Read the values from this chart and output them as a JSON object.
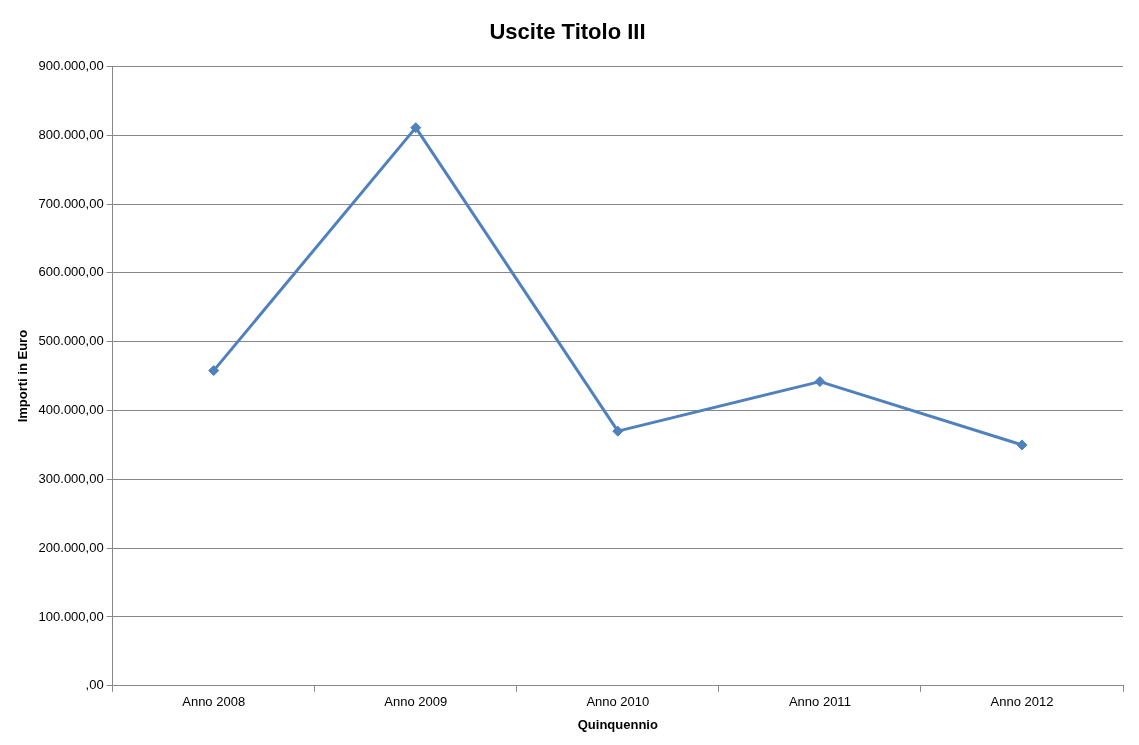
{
  "chart_data": {
    "type": "line",
    "title": "Uscite Titolo III",
    "xlabel": "Quinquennio",
    "ylabel": "Importi in Euro",
    "categories": [
      "Anno 2008",
      "Anno 2009",
      "Anno 2010",
      "Anno 2011",
      "Anno 2012"
    ],
    "series": [
      {
        "color": "#4f81bd",
        "values": [
          458000,
          811000,
          370000,
          442000,
          350000
        ]
      }
    ],
    "ylim": [
      0,
      900000
    ],
    "yticks": [
      {
        "value": 0,
        "label": ",00"
      },
      {
        "value": 100000,
        "label": "100.000,00"
      },
      {
        "value": 200000,
        "label": "200.000,00"
      },
      {
        "value": 300000,
        "label": "300.000,00"
      },
      {
        "value": 400000,
        "label": "400.000,00"
      },
      {
        "value": 500000,
        "label": "500.000,00"
      },
      {
        "value": 600000,
        "label": "600.000,00"
      },
      {
        "value": 700000,
        "label": "700.000,00"
      },
      {
        "value": 800000,
        "label": "800.000,00"
      },
      {
        "value": 900000,
        "label": "900.000,00"
      }
    ],
    "grid": "y",
    "legend": false,
    "marker": "diamond",
    "line_style": "solid"
  }
}
